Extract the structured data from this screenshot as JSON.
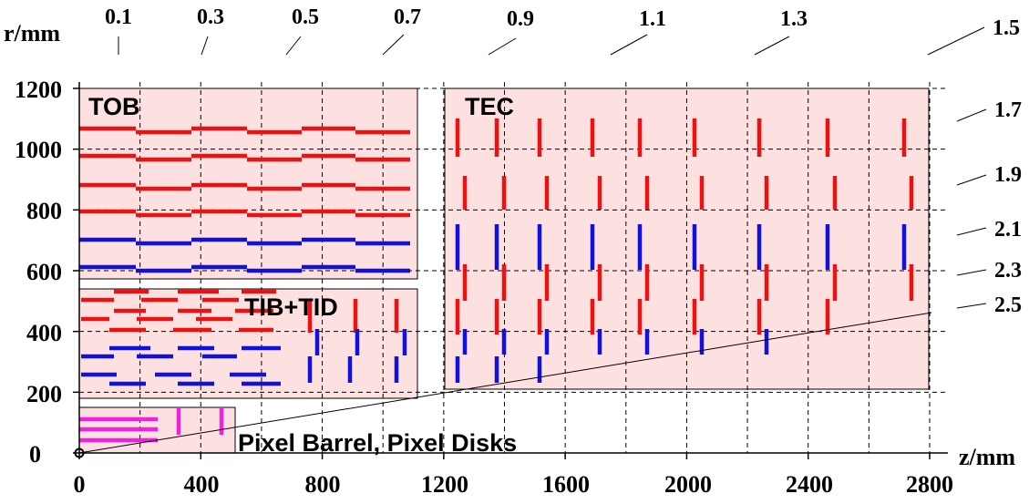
{
  "axes": {
    "r_label": "r/mm",
    "z_label": "z/mm",
    "r_ticks": [
      "1200",
      "1000",
      "800",
      "600",
      "400",
      "200",
      "0"
    ],
    "r_tick_values": [
      1200,
      1000,
      800,
      600,
      400,
      200,
      0
    ],
    "z_ticks": [
      "0",
      "400",
      "800",
      "1200",
      "1600",
      "2000",
      "2400",
      "2800"
    ],
    "z_tick_values": [
      0,
      400,
      800,
      1200,
      1600,
      2000,
      2400,
      2800
    ],
    "z_range": [
      0,
      2800
    ],
    "r_range": [
      0,
      1200
    ]
  },
  "eta": {
    "top": [
      "0.1",
      "0.3",
      "0.5",
      "0.7",
      "0.9",
      "1.1",
      "1.3",
      "1.5"
    ],
    "right": [
      "1.7",
      "1.9",
      "2.1",
      "2.3",
      "2.5"
    ]
  },
  "regions": {
    "tob": "TOB",
    "tec": "TEC",
    "tib": "TIB+TID",
    "pixel": "Pixel Barrel, Pixel Disks"
  },
  "colors": {
    "region_fill": "#fde0e0",
    "stereo": "#ee1111",
    "rphi": "#1111dd",
    "pixel": "#ee22dd"
  }
}
